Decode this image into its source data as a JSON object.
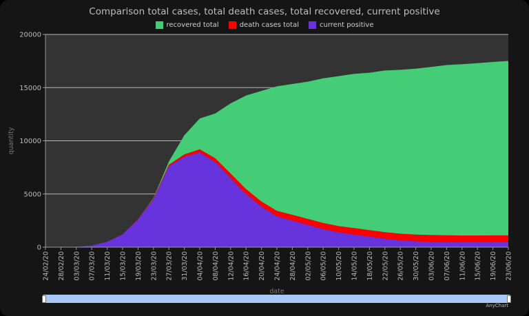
{
  "chart_data": {
    "type": "area",
    "stacked": true,
    "title": "Comparison total cases, total death cases, total recovered, current positive",
    "xlabel": "date",
    "ylabel": "quantity",
    "ylim": [
      0,
      20000
    ],
    "yticks": [
      "0",
      "5000",
      "10000",
      "15000",
      "20000"
    ],
    "grid": true,
    "legend_position": "top",
    "x": [
      "24/02/20",
      "28/02/20",
      "03/03/20",
      "07/03/20",
      "11/03/20",
      "15/03/20",
      "19/03/20",
      "23/03/20",
      "27/03/20",
      "31/03/20",
      "04/04/20",
      "08/04/20",
      "12/04/20",
      "16/04/20",
      "20/04/20",
      "24/04/20",
      "28/04/20",
      "02/05/20",
      "06/05/20",
      "10/05/20",
      "14/05/20",
      "18/05/20",
      "22/05/20",
      "26/05/20",
      "30/05/20",
      "03/06/20",
      "07/06/20",
      "11/06/20",
      "15/06/20",
      "19/06/20",
      "23/06/20"
    ],
    "series": [
      {
        "name": "current positive",
        "color": "#6633dd",
        "values": [
          0,
          0,
          20,
          150,
          500,
          1200,
          2600,
          4500,
          7600,
          8500,
          8900,
          8000,
          6500,
          5000,
          3800,
          2900,
          2500,
          2100,
          1700,
          1400,
          1200,
          1000,
          800,
          650,
          550,
          500,
          480,
          450,
          450,
          450,
          450
        ]
      },
      {
        "name": "death cases total",
        "color": "#ff0000",
        "values": [
          0,
          0,
          0,
          0,
          10,
          20,
          40,
          80,
          150,
          220,
          300,
          360,
          420,
          460,
          490,
          520,
          540,
          560,
          570,
          580,
          590,
          600,
          610,
          620,
          630,
          640,
          640,
          650,
          650,
          660,
          660
        ]
      },
      {
        "name": "recovered total",
        "color": "#44cc77",
        "values": [
          0,
          0,
          0,
          0,
          0,
          0,
          0,
          50,
          300,
          1800,
          2900,
          4200,
          6600,
          8800,
          10400,
          11700,
          12300,
          12900,
          13600,
          14100,
          14500,
          14800,
          15200,
          15400,
          15600,
          15800,
          16000,
          16100,
          16200,
          16300,
          16400
        ]
      }
    ]
  },
  "scroller": {
    "start": 0,
    "end": 1
  },
  "credit": "AnyChart"
}
